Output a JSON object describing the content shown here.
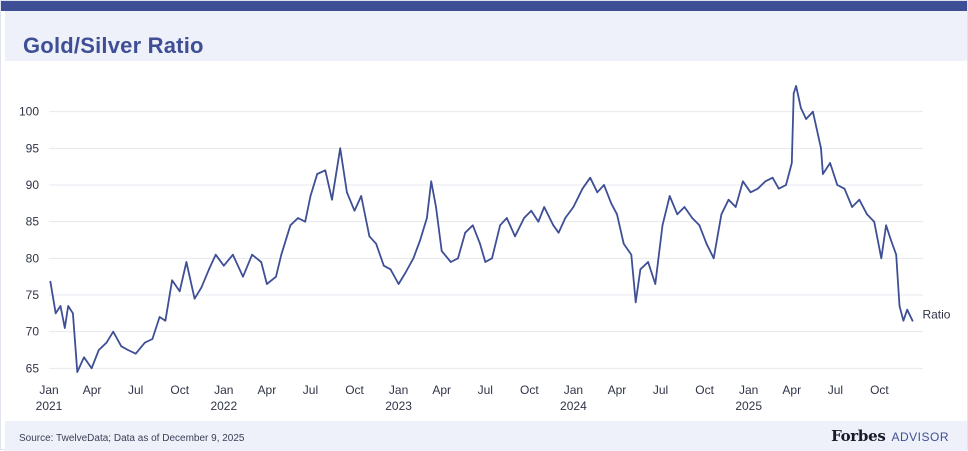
{
  "header": {
    "title": "Gold/Silver Ratio"
  },
  "footer": {
    "source": "Source: TwelveData; Data as of December 9, 2025",
    "brand_name": "Forbes",
    "brand_sub": "ADVISOR"
  },
  "colors": {
    "accent": "#3f4f96",
    "line": "#3f4f96",
    "header_bg": "#eef1f9",
    "grid": "#e6e8ef"
  },
  "chart_data": {
    "type": "line",
    "title": "Gold/Silver Ratio",
    "xlabel": "",
    "ylabel": "",
    "ylim": [
      64.5,
      105
    ],
    "yticks": [
      65,
      70,
      75,
      80,
      85,
      90,
      95,
      100
    ],
    "xlim": [
      "2021-01-01",
      "2025-12-31"
    ],
    "xticks": [
      {
        "date": "2021-01-01",
        "label": "Jan",
        "year": "2021"
      },
      {
        "date": "2021-04-01",
        "label": "Apr",
        "year": ""
      },
      {
        "date": "2021-07-01",
        "label": "Jul",
        "year": ""
      },
      {
        "date": "2021-10-01",
        "label": "Oct",
        "year": ""
      },
      {
        "date": "2022-01-01",
        "label": "Jan",
        "year": "2022"
      },
      {
        "date": "2022-04-01",
        "label": "Apr",
        "year": ""
      },
      {
        "date": "2022-07-01",
        "label": "Jul",
        "year": ""
      },
      {
        "date": "2022-10-01",
        "label": "Oct",
        "year": ""
      },
      {
        "date": "2023-01-01",
        "label": "Jan",
        "year": "2023"
      },
      {
        "date": "2023-04-01",
        "label": "Apr",
        "year": ""
      },
      {
        "date": "2023-07-01",
        "label": "Jul",
        "year": ""
      },
      {
        "date": "2023-10-01",
        "label": "Oct",
        "year": ""
      },
      {
        "date": "2024-01-01",
        "label": "Jan",
        "year": "2024"
      },
      {
        "date": "2024-04-01",
        "label": "Apr",
        "year": ""
      },
      {
        "date": "2024-07-01",
        "label": "Jul",
        "year": ""
      },
      {
        "date": "2024-10-01",
        "label": "Oct",
        "year": ""
      },
      {
        "date": "2025-01-01",
        "label": "Jan",
        "year": "2025"
      },
      {
        "date": "2025-04-01",
        "label": "Apr",
        "year": ""
      },
      {
        "date": "2025-07-01",
        "label": "Jul",
        "year": ""
      },
      {
        "date": "2025-10-01",
        "label": "Oct",
        "year": ""
      }
    ],
    "grid": "horizontal",
    "series": [
      {
        "name": "Ratio",
        "points": [
          [
            "2021-01-04",
            76.8
          ],
          [
            "2021-01-15",
            72.5
          ],
          [
            "2021-01-25",
            73.5
          ],
          [
            "2021-02-03",
            70.5
          ],
          [
            "2021-02-10",
            73.5
          ],
          [
            "2021-02-20",
            72.5
          ],
          [
            "2021-03-01",
            64.5
          ],
          [
            "2021-03-15",
            66.5
          ],
          [
            "2021-03-31",
            65.0
          ],
          [
            "2021-04-15",
            67.5
          ],
          [
            "2021-05-01",
            68.5
          ],
          [
            "2021-05-15",
            70.0
          ],
          [
            "2021-06-01",
            68.0
          ],
          [
            "2021-06-15",
            67.5
          ],
          [
            "2021-07-01",
            67.0
          ],
          [
            "2021-07-20",
            68.5
          ],
          [
            "2021-08-05",
            69.0
          ],
          [
            "2021-08-20",
            72.0
          ],
          [
            "2021-09-01",
            71.5
          ],
          [
            "2021-09-15",
            77.0
          ],
          [
            "2021-10-01",
            75.5
          ],
          [
            "2021-10-15",
            79.5
          ],
          [
            "2021-11-01",
            74.5
          ],
          [
            "2021-11-15",
            76.0
          ],
          [
            "2021-12-01",
            78.5
          ],
          [
            "2021-12-15",
            80.5
          ],
          [
            "2022-01-01",
            79.0
          ],
          [
            "2022-01-20",
            80.5
          ],
          [
            "2022-02-10",
            77.5
          ],
          [
            "2022-03-01",
            80.5
          ],
          [
            "2022-03-20",
            79.5
          ],
          [
            "2022-04-01",
            76.5
          ],
          [
            "2022-04-20",
            77.5
          ],
          [
            "2022-05-01",
            80.5
          ],
          [
            "2022-05-20",
            84.5
          ],
          [
            "2022-06-05",
            85.5
          ],
          [
            "2022-06-20",
            85.0
          ],
          [
            "2022-07-01",
            88.5
          ],
          [
            "2022-07-15",
            91.5
          ],
          [
            "2022-08-01",
            92.0
          ],
          [
            "2022-08-15",
            88.0
          ],
          [
            "2022-09-01",
            95.0
          ],
          [
            "2022-09-15",
            89.0
          ],
          [
            "2022-10-01",
            86.5
          ],
          [
            "2022-10-15",
            88.5
          ],
          [
            "2022-11-01",
            83.0
          ],
          [
            "2022-11-15",
            82.0
          ],
          [
            "2022-12-01",
            79.0
          ],
          [
            "2022-12-15",
            78.5
          ],
          [
            "2023-01-01",
            76.5
          ],
          [
            "2023-01-15",
            78.0
          ],
          [
            "2023-02-01",
            80.0
          ],
          [
            "2023-02-15",
            82.5
          ],
          [
            "2023-03-01",
            85.5
          ],
          [
            "2023-03-10",
            90.5
          ],
          [
            "2023-03-20",
            87.0
          ],
          [
            "2023-04-01",
            81.0
          ],
          [
            "2023-04-20",
            79.5
          ],
          [
            "2023-05-05",
            80.0
          ],
          [
            "2023-05-20",
            83.5
          ],
          [
            "2023-06-05",
            84.5
          ],
          [
            "2023-06-20",
            82.0
          ],
          [
            "2023-07-01",
            79.5
          ],
          [
            "2023-07-15",
            80.0
          ],
          [
            "2023-08-01",
            84.5
          ],
          [
            "2023-08-15",
            85.5
          ],
          [
            "2023-09-01",
            83.0
          ],
          [
            "2023-09-20",
            85.5
          ],
          [
            "2023-10-05",
            86.5
          ],
          [
            "2023-10-20",
            85.0
          ],
          [
            "2023-11-01",
            87.0
          ],
          [
            "2023-11-20",
            84.5
          ],
          [
            "2023-12-01",
            83.5
          ],
          [
            "2023-12-15",
            85.5
          ],
          [
            "2024-01-01",
            87.0
          ],
          [
            "2024-01-20",
            89.5
          ],
          [
            "2024-02-05",
            91.0
          ],
          [
            "2024-02-20",
            89.0
          ],
          [
            "2024-03-05",
            90.0
          ],
          [
            "2024-03-20",
            87.5
          ],
          [
            "2024-04-01",
            86.0
          ],
          [
            "2024-04-15",
            82.0
          ],
          [
            "2024-05-01",
            80.5
          ],
          [
            "2024-05-10",
            74.0
          ],
          [
            "2024-05-20",
            78.5
          ],
          [
            "2024-06-05",
            79.5
          ],
          [
            "2024-06-20",
            76.5
          ],
          [
            "2024-07-05",
            84.5
          ],
          [
            "2024-07-20",
            88.5
          ],
          [
            "2024-08-05",
            86.0
          ],
          [
            "2024-08-20",
            87.0
          ],
          [
            "2024-09-05",
            85.5
          ],
          [
            "2024-09-20",
            84.5
          ],
          [
            "2024-10-05",
            82.0
          ],
          [
            "2024-10-20",
            80.0
          ],
          [
            "2024-11-05",
            86.0
          ],
          [
            "2024-11-20",
            88.0
          ],
          [
            "2024-12-05",
            87.0
          ],
          [
            "2024-12-20",
            90.5
          ],
          [
            "2025-01-05",
            89.0
          ],
          [
            "2025-01-20",
            89.5
          ],
          [
            "2025-02-05",
            90.5
          ],
          [
            "2025-02-20",
            91.0
          ],
          [
            "2025-03-05",
            89.5
          ],
          [
            "2025-03-20",
            90.0
          ],
          [
            "2025-04-01",
            93.0
          ],
          [
            "2025-04-05",
            102.5
          ],
          [
            "2025-04-10",
            103.5
          ],
          [
            "2025-04-20",
            100.5
          ],
          [
            "2025-05-01",
            99.0
          ],
          [
            "2025-05-15",
            100.0
          ],
          [
            "2025-06-01",
            95.0
          ],
          [
            "2025-06-05",
            91.5
          ],
          [
            "2025-06-20",
            93.0
          ],
          [
            "2025-07-05",
            90.0
          ],
          [
            "2025-07-20",
            89.5
          ],
          [
            "2025-08-05",
            87.0
          ],
          [
            "2025-08-20",
            88.0
          ],
          [
            "2025-09-05",
            86.0
          ],
          [
            "2025-09-20",
            85.0
          ],
          [
            "2025-10-05",
            80.0
          ],
          [
            "2025-10-15",
            84.5
          ],
          [
            "2025-10-25",
            82.5
          ],
          [
            "2025-11-05",
            80.5
          ],
          [
            "2025-11-12",
            73.5
          ],
          [
            "2025-11-20",
            71.5
          ],
          [
            "2025-11-28",
            73.0
          ],
          [
            "2025-12-09",
            71.5
          ]
        ]
      }
    ]
  }
}
